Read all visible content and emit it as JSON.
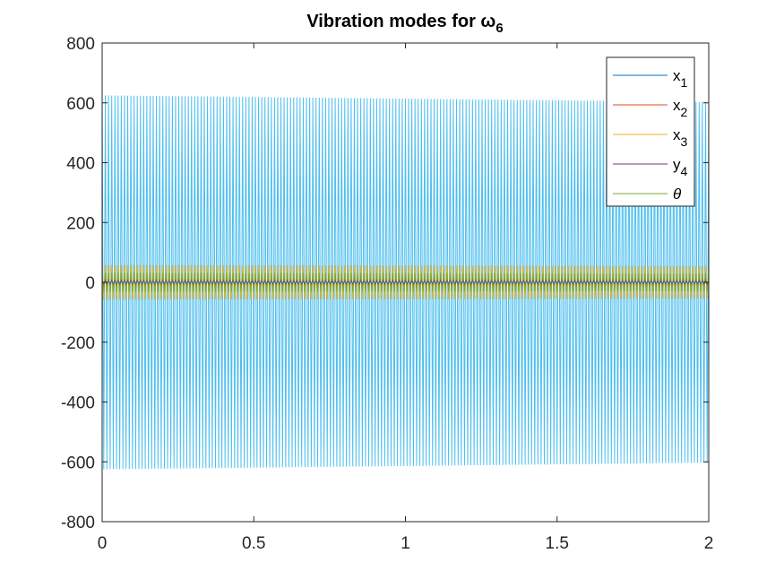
{
  "chart_data": {
    "type": "line",
    "title": "Vibration modes for ω",
    "title_subscript": "6",
    "xlabel": "",
    "ylabel": "",
    "xlim": [
      0,
      2
    ],
    "ylim": [
      -800,
      800
    ],
    "x_ticks": [
      "0",
      "0.5",
      "1",
      "1.5",
      "2"
    ],
    "y_ticks": [
      "800",
      "600",
      "400",
      "200",
      "0",
      "-200",
      "-400",
      "-600",
      "-800"
    ],
    "grid": false,
    "legend_position": "top-right",
    "signal": {
      "cycles_over_range": 190
    },
    "series": [
      {
        "name": "x",
        "subscript": "1",
        "color": "#0072BD",
        "amplitude_start": 3,
        "amplitude_end": 3
      },
      {
        "name": "x",
        "subscript": "2",
        "color": "#D95319",
        "amplitude_start": 8,
        "amplitude_end": 8
      },
      {
        "name": "x",
        "subscript": "3",
        "color": "#EDB120",
        "amplitude_start": 58,
        "amplitude_end": 55
      },
      {
        "name": "y",
        "subscript": "4",
        "color": "#7E2F8E",
        "amplitude_start": 625,
        "amplitude_end": 603,
        "draw_color": "#4DBEEE"
      },
      {
        "name": "θ",
        "subscript": "",
        "color": "#77AC30",
        "amplitude_start": 32,
        "amplitude_end": 30
      }
    ]
  }
}
